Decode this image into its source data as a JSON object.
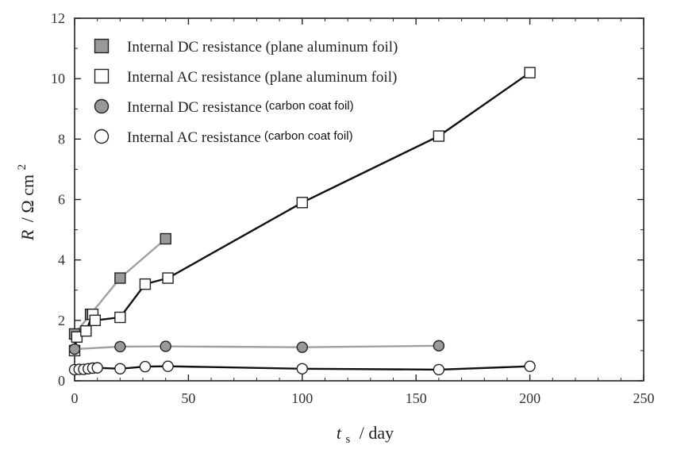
{
  "chart_data": {
    "type": "line",
    "xlabel_var": "t",
    "xlabel_sub": "s",
    "xlabel_unit": "/ day",
    "ylabel_var": "R",
    "ylabel_unit": "/ Ω cm",
    "ylabel_sup": "2",
    "xlim": [
      0,
      250
    ],
    "ylim": [
      0,
      12
    ],
    "x_ticks": [
      "0",
      "50",
      "100",
      "150",
      "200",
      "250"
    ],
    "y_ticks": [
      "0",
      "2",
      "4",
      "6",
      "8",
      "10",
      "12"
    ],
    "grid": false,
    "legend_position": "top-left",
    "series": [
      {
        "name": "Internal DC resistance (plane aluminum foil)",
        "name_main": "Internal DC resistance (plane aluminum foil)",
        "name_sub": "",
        "marker": "square",
        "fill": "#999999",
        "line": "#a0a0a0",
        "x": [
          0,
          7,
          20,
          40
        ],
        "y": [
          1.55,
          2.2,
          3.4,
          4.7
        ]
      },
      {
        "name": "Internal AC resistance (plane aluminum foil)",
        "name_main": "Internal AC resistance (plane aluminum foil)",
        "name_sub": "",
        "marker": "square",
        "fill": "#ffffff",
        "line": "#111111",
        "x": [
          0,
          1,
          5,
          8,
          9,
          20,
          31,
          41,
          100,
          160,
          200
        ],
        "y": [
          1.0,
          1.45,
          1.65,
          2.2,
          2.0,
          2.1,
          3.2,
          3.4,
          5.9,
          8.1,
          10.2
        ]
      },
      {
        "name": "Internal DC resistance (carbon coat foil)",
        "name_main": "Internal DC resistance",
        "name_sub": "(carbon coat foil)",
        "marker": "circle",
        "fill": "#999999",
        "line": "#a0a0a0",
        "x": [
          0,
          20,
          40,
          100,
          160
        ],
        "y": [
          1.05,
          1.13,
          1.14,
          1.11,
          1.16
        ]
      },
      {
        "name": "Internal AC resistance (carbon coat foil)",
        "name_main": "Internal AC resistance",
        "name_sub": "(carbon coat foil)",
        "marker": "circle",
        "fill": "#ffffff",
        "line": "#111111",
        "x": [
          0,
          2,
          4,
          6,
          8,
          10,
          20,
          31,
          41,
          100,
          160,
          200
        ],
        "y": [
          0.37,
          0.38,
          0.38,
          0.4,
          0.42,
          0.43,
          0.4,
          0.47,
          0.48,
          0.4,
          0.37,
          0.48
        ]
      }
    ]
  }
}
